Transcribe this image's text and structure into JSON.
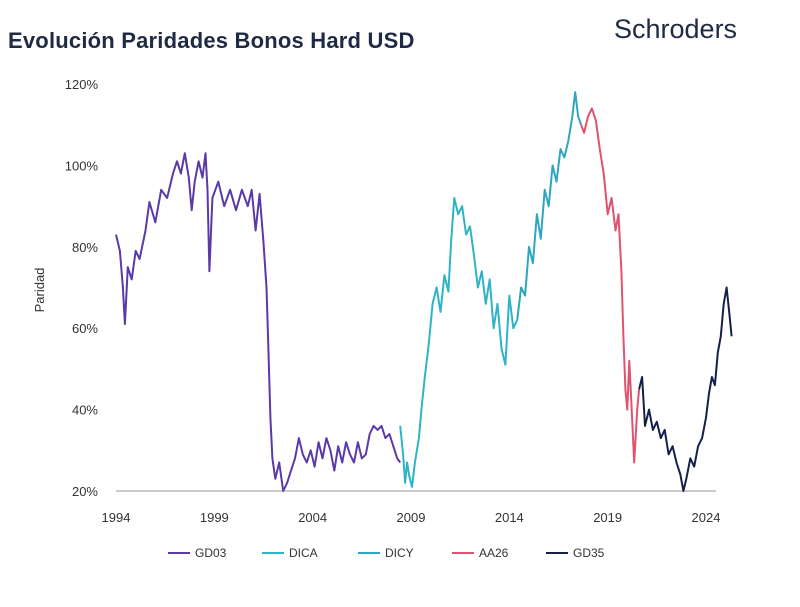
{
  "header": {
    "title": "Evolución Paridades Bonos Hard USD",
    "brand": "Schroders"
  },
  "chart_data": {
    "type": "line",
    "ylabel": "Paridad",
    "xlim": [
      1994,
      2024.5
    ],
    "ylim": [
      20,
      120
    ],
    "x_ticks": [
      "1994",
      "1999",
      "2004",
      "2009",
      "2014",
      "2019",
      "2024"
    ],
    "y_ticks": [
      "20%",
      "40%",
      "60%",
      "80%",
      "100%",
      "120%"
    ],
    "grid": false,
    "legend_position": "bottom",
    "series": [
      {
        "name": "GD03",
        "color": "#5b3aa8",
        "points": [
          [
            1994.0,
            83
          ],
          [
            1994.2,
            79
          ],
          [
            1994.35,
            70
          ],
          [
            1994.45,
            61
          ],
          [
            1994.6,
            75
          ],
          [
            1994.8,
            72
          ],
          [
            1995.0,
            79
          ],
          [
            1995.2,
            77
          ],
          [
            1995.5,
            84
          ],
          [
            1995.7,
            91
          ],
          [
            1996.0,
            86
          ],
          [
            1996.3,
            94
          ],
          [
            1996.6,
            92
          ],
          [
            1996.9,
            98
          ],
          [
            1997.1,
            101
          ],
          [
            1997.3,
            98
          ],
          [
            1997.5,
            103
          ],
          [
            1997.7,
            97
          ],
          [
            1997.85,
            89
          ],
          [
            1998.0,
            96
          ],
          [
            1998.2,
            101
          ],
          [
            1998.4,
            97
          ],
          [
            1998.55,
            103
          ],
          [
            1998.65,
            94
          ],
          [
            1998.75,
            74
          ],
          [
            1998.9,
            92
          ],
          [
            1999.2,
            96
          ],
          [
            1999.5,
            90
          ],
          [
            1999.8,
            94
          ],
          [
            2000.1,
            89
          ],
          [
            2000.4,
            94
          ],
          [
            2000.7,
            90
          ],
          [
            2000.9,
            94
          ],
          [
            2001.1,
            84
          ],
          [
            2001.3,
            93
          ],
          [
            2001.5,
            81
          ],
          [
            2001.65,
            70
          ],
          [
            2001.75,
            55
          ],
          [
            2001.85,
            38
          ],
          [
            2001.95,
            28
          ],
          [
            2002.1,
            23
          ],
          [
            2002.3,
            27
          ],
          [
            2002.5,
            20
          ],
          [
            2002.7,
            22
          ],
          [
            2002.9,
            25
          ],
          [
            2003.1,
            28
          ],
          [
            2003.3,
            33
          ],
          [
            2003.5,
            29
          ],
          [
            2003.7,
            27
          ],
          [
            2003.9,
            30
          ],
          [
            2004.1,
            26
          ],
          [
            2004.3,
            32
          ],
          [
            2004.5,
            28
          ],
          [
            2004.7,
            33
          ],
          [
            2004.9,
            30
          ],
          [
            2005.1,
            25
          ],
          [
            2005.3,
            31
          ],
          [
            2005.5,
            27
          ],
          [
            2005.7,
            32
          ],
          [
            2005.9,
            29
          ],
          [
            2006.1,
            27
          ],
          [
            2006.3,
            32
          ],
          [
            2006.5,
            28
          ],
          [
            2006.7,
            29
          ],
          [
            2006.9,
            34
          ],
          [
            2007.1,
            36
          ],
          [
            2007.3,
            35
          ],
          [
            2007.5,
            36
          ],
          [
            2007.7,
            33
          ],
          [
            2007.9,
            34
          ],
          [
            2008.1,
            31
          ],
          [
            2008.3,
            28
          ],
          [
            2008.45,
            27
          ]
        ]
      },
      {
        "name": "DICA",
        "color": "#2fb3c6",
        "points": [
          [
            2008.45,
            36
          ],
          [
            2008.6,
            29
          ],
          [
            2008.7,
            22
          ],
          [
            2008.8,
            27
          ],
          [
            2008.9,
            24
          ],
          [
            2009.05,
            21
          ],
          [
            2009.2,
            27
          ],
          [
            2009.4,
            33
          ],
          [
            2009.55,
            41
          ],
          [
            2009.7,
            48
          ],
          [
            2009.9,
            56
          ],
          [
            2010.1,
            66
          ],
          [
            2010.3,
            70
          ],
          [
            2010.5,
            64
          ],
          [
            2010.7,
            73
          ],
          [
            2010.9,
            69
          ],
          [
            2011.05,
            82
          ],
          [
            2011.2,
            92
          ],
          [
            2011.4,
            88
          ],
          [
            2011.6,
            90
          ],
          [
            2011.8,
            83
          ],
          [
            2012.0,
            85
          ],
          [
            2012.2,
            78
          ],
          [
            2012.4,
            70
          ],
          [
            2012.6,
            74
          ],
          [
            2012.8,
            66
          ],
          [
            2013.0,
            72
          ],
          [
            2013.2,
            60
          ],
          [
            2013.4,
            66
          ],
          [
            2013.6,
            55
          ],
          [
            2013.8,
            51
          ],
          [
            2014.0,
            68
          ],
          [
            2014.2,
            60
          ],
          [
            2014.4,
            62
          ]
        ]
      },
      {
        "name": "DICY",
        "color": "#2fa6c0",
        "points": [
          [
            2014.4,
            62
          ],
          [
            2014.6,
            70
          ],
          [
            2014.8,
            68
          ],
          [
            2015.0,
            80
          ],
          [
            2015.2,
            76
          ],
          [
            2015.4,
            88
          ],
          [
            2015.6,
            82
          ],
          [
            2015.8,
            94
          ],
          [
            2016.0,
            90
          ],
          [
            2016.2,
            100
          ],
          [
            2016.4,
            96
          ],
          [
            2016.6,
            104
          ],
          [
            2016.8,
            102
          ],
          [
            2017.0,
            106
          ],
          [
            2017.2,
            112
          ],
          [
            2017.35,
            118
          ],
          [
            2017.5,
            112
          ],
          [
            2017.65,
            110
          ]
        ]
      },
      {
        "name": "AA26",
        "color": "#e0526d",
        "points": [
          [
            2017.65,
            110
          ],
          [
            2017.8,
            108
          ],
          [
            2018.0,
            112
          ],
          [
            2018.2,
            114
          ],
          [
            2018.4,
            111
          ],
          [
            2018.6,
            104
          ],
          [
            2018.8,
            98
          ],
          [
            2019.0,
            88
          ],
          [
            2019.2,
            92
          ],
          [
            2019.4,
            84
          ],
          [
            2019.55,
            88
          ],
          [
            2019.7,
            74
          ],
          [
            2019.8,
            58
          ],
          [
            2019.9,
            45
          ],
          [
            2020.0,
            40
          ],
          [
            2020.1,
            52
          ],
          [
            2020.2,
            42
          ],
          [
            2020.35,
            27
          ],
          [
            2020.5,
            40
          ],
          [
            2020.6,
            45
          ]
        ]
      },
      {
        "name": "GD35",
        "color": "#15204a",
        "points": [
          [
            2020.6,
            45
          ],
          [
            2020.75,
            48
          ],
          [
            2020.9,
            36
          ],
          [
            2021.1,
            40
          ],
          [
            2021.3,
            35
          ],
          [
            2021.5,
            37
          ],
          [
            2021.7,
            33
          ],
          [
            2021.9,
            35
          ],
          [
            2022.1,
            29
          ],
          [
            2022.3,
            31
          ],
          [
            2022.5,
            27
          ],
          [
            2022.7,
            24
          ],
          [
            2022.85,
            20
          ],
          [
            2023.0,
            23
          ],
          [
            2023.2,
            28
          ],
          [
            2023.4,
            26
          ],
          [
            2023.6,
            31
          ],
          [
            2023.8,
            33
          ],
          [
            2024.0,
            38
          ],
          [
            2024.15,
            44
          ],
          [
            2024.3,
            48
          ],
          [
            2024.45,
            46
          ],
          [
            2024.6,
            54
          ],
          [
            2024.75,
            58
          ],
          [
            2024.9,
            66
          ],
          [
            2025.05,
            70
          ],
          [
            2025.2,
            63
          ],
          [
            2025.3,
            58
          ]
        ]
      }
    ]
  }
}
